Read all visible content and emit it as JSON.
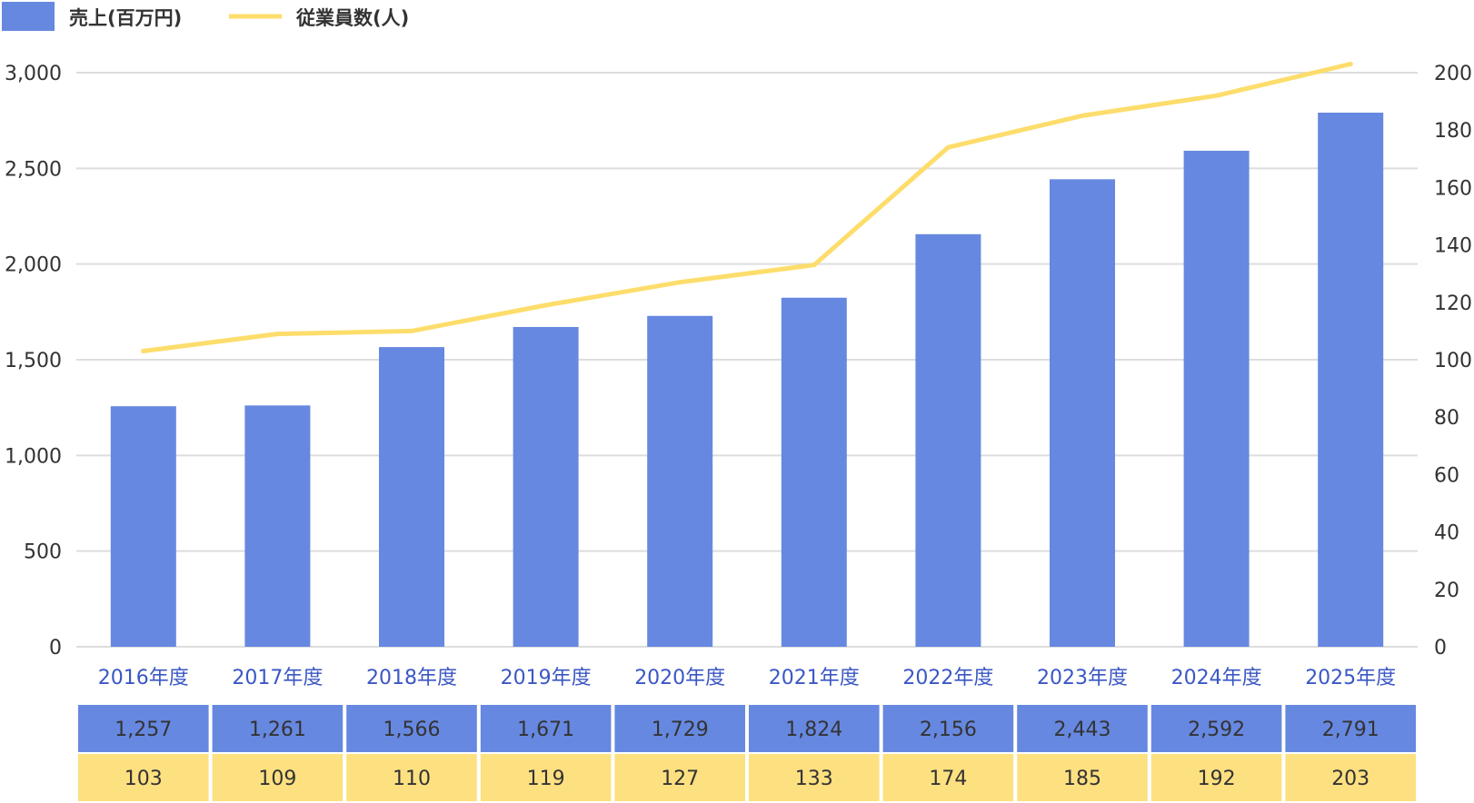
{
  "chart_data": {
    "type": "bar",
    "categories": [
      "2016年度",
      "2017年度",
      "2018年度",
      "2019年度",
      "2020年度",
      "2021年度",
      "2022年度",
      "2023年度",
      "2024年度",
      "2025年度"
    ],
    "series": [
      {
        "name": "売上(百万円)",
        "type": "bar",
        "axis": "left",
        "color": "#6688e0",
        "values": [
          1257,
          1261,
          1566,
          1671,
          1729,
          1824,
          2156,
          2443,
          2592,
          2791
        ]
      },
      {
        "name": "従業員数(人)",
        "type": "line",
        "axis": "right",
        "color": "#fddd6b",
        "values": [
          103,
          109,
          110,
          119,
          127,
          133,
          174,
          185,
          192,
          203
        ]
      }
    ],
    "left_axis": {
      "ylim": [
        0,
        3000
      ],
      "ticks": [
        "0",
        "500",
        "1,000",
        "1,500",
        "2,000",
        "2,500",
        "3,000"
      ]
    },
    "right_axis": {
      "ylim": [
        0,
        200
      ],
      "ticks": [
        "0",
        "20",
        "40",
        "60",
        "80",
        "100",
        "120",
        "140",
        "160",
        "180",
        "200"
      ]
    },
    "table_rows": [
      {
        "series": "売上(百万円)",
        "bg": "#6688e0",
        "cells": [
          "1,257",
          "1,261",
          "1,566",
          "1,671",
          "1,729",
          "1,824",
          "2,156",
          "2,443",
          "2,592",
          "2,791"
        ]
      },
      {
        "series": "従業員数(人)",
        "bg": "#fde080",
        "cells": [
          "103",
          "109",
          "110",
          "119",
          "127",
          "133",
          "174",
          "185",
          "192",
          "203"
        ]
      }
    ],
    "legend_position": "top-left",
    "grid": true,
    "colors": {
      "bar": "#6688e0",
      "line": "#fddd6b",
      "category_label": "#3b57c4",
      "grid": "#dddddd"
    }
  }
}
